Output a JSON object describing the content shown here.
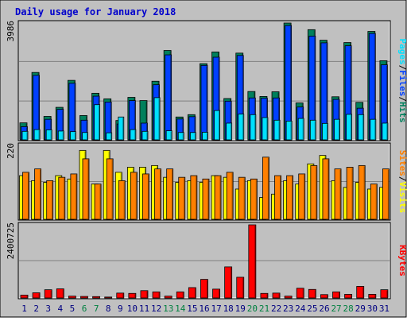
{
  "colors": {
    "frame_bg": "#c0c0c0",
    "panel_bg": "#c0c0c0",
    "grid": "#808080",
    "title": "#0000cc",
    "hits": "#00805c",
    "files": "#0040ff",
    "pages": "#00e0ff",
    "visits": "#ffff00",
    "sites": "#ff8000",
    "kbytes": "#ff0000",
    "weekend_tick": "#008040",
    "tick": "#000080"
  },
  "chart_data": {
    "type": "bar",
    "title": "Daily usage for January 2018",
    "categories": [
      "1",
      "2",
      "3",
      "4",
      "5",
      "6",
      "7",
      "8",
      "9",
      "10",
      "11",
      "12",
      "13",
      "14",
      "15",
      "16",
      "17",
      "18",
      "19",
      "20",
      "21",
      "22",
      "23",
      "24",
      "25",
      "26",
      "27",
      "28",
      "29",
      "30",
      "31"
    ],
    "weekend_days": [
      "6",
      "7",
      "13",
      "14",
      "20",
      "21",
      "27",
      "28"
    ],
    "panels": [
      {
        "ymax_label": "3986",
        "ylim": [
          0,
          3986
        ],
        "right_label": {
          "pages": "Pages",
          "sep1": "/",
          "files": "Files",
          "sep2": "/",
          "hits": "Hits"
        },
        "series": [
          {
            "name": "Hits",
            "values": [
              580,
              2300,
              800,
              1110,
              2030,
              830,
              1590,
              1400,
              660,
              1450,
              1340,
              2000,
              3050,
              780,
              860,
              2600,
              3000,
              1410,
              2960,
              1650,
              1480,
              1640,
              3986,
              1260,
              3760,
              3400,
              1470,
              3320,
              1280,
              3700,
              2700
            ]
          },
          {
            "name": "Files",
            "values": [
              450,
              2200,
              700,
              1040,
              1930,
              670,
              1490,
              1290,
              540,
              1340,
              570,
              1880,
              2900,
              710,
              790,
              2540,
              2820,
              1320,
              2880,
              1430,
              1420,
              1430,
              3900,
              1120,
              3540,
              3310,
              1380,
              3210,
              1080,
              3630,
              2560
            ]
          },
          {
            "name": "Pages",
            "values": [
              290,
              350,
              340,
              300,
              280,
              250,
              1200,
              240,
              780,
              350,
              290,
              1440,
              310,
              250,
              250,
              260,
              1000,
              570,
              880,
              860,
              760,
              670,
              640,
              730,
              670,
              560,
              700,
              870,
              860,
              700,
              570
            ]
          }
        ]
      },
      {
        "ymax_label": "220",
        "ylim": [
          0,
          220
        ],
        "right_label": {
          "sites": "Sites",
          "sep": "/",
          "visits": "Visits"
        },
        "series": [
          {
            "name": "Visits",
            "values": [
              130,
              115,
              110,
              130,
              120,
              205,
              105,
              205,
              140,
              155,
              155,
              160,
              125,
              110,
              115,
              110,
              130,
              125,
              90,
              115,
              65,
              75,
              115,
              105,
              165,
              190,
              115,
              95,
              110,
              90,
              95
            ]
          },
          {
            "name": "Sites",
            "values": [
              140,
              150,
              115,
              125,
              135,
              180,
              105,
              180,
              115,
              140,
              135,
              150,
              150,
              125,
              130,
              120,
              130,
              140,
              125,
              120,
              185,
              130,
              130,
              135,
              160,
              180,
              150,
              155,
              160,
              105,
              150
            ]
          }
        ]
      },
      {
        "ymax_label": "2400725",
        "ylim": [
          0,
          2400725
        ],
        "right_label": {
          "kbytes": "KBytes"
        },
        "series": [
          {
            "name": "KBytes",
            "values": [
              95000,
              170000,
              270000,
              300000,
              60000,
              50000,
              45000,
              30000,
              160000,
              150000,
              240000,
              200000,
              60000,
              200000,
              340000,
              610000,
              290000,
              1020000,
              680000,
              2400725,
              150000,
              160000,
              60000,
              320000,
              280000,
              110000,
              200000,
              120000,
              380000,
              120000,
              270000
            ]
          }
        ]
      }
    ]
  }
}
